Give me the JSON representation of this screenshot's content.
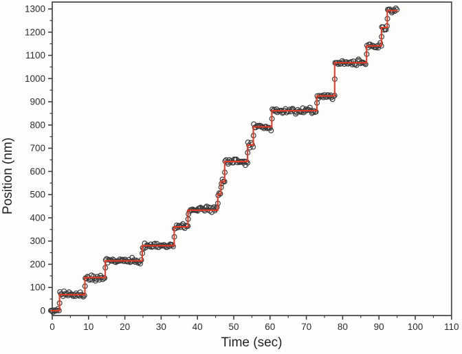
{
  "figure": {
    "description": "Scatter plot of bead position versus time showing discrete stepping, with a red step-function fit line overlaid on open-circle data points",
    "background_color": "#fdfdfc"
  },
  "colors": {
    "fit_line": "#e83b27",
    "marker_stroke": "#3a3a3a",
    "frame": "#4d4d4d",
    "tick": "#3f3f3f",
    "text": "#2b2b2b"
  },
  "chart_data": {
    "type": "scatter",
    "title": "",
    "xlabel": "Time (sec)",
    "ylabel": "Position (nm)",
    "xlim": [
      0,
      110
    ],
    "ylim": [
      0,
      1300
    ],
    "grid": false,
    "legend": "none",
    "x_major_ticks": [
      0,
      10,
      20,
      30,
      40,
      50,
      60,
      70,
      80,
      90,
      100,
      110
    ],
    "x_minor_step": 5,
    "y_major_ticks": [
      0,
      100,
      200,
      300,
      400,
      500,
      600,
      700,
      800,
      900,
      1000,
      1100,
      1200,
      1300
    ],
    "y_minor_step": 50,
    "series": [
      {
        "name": "position-samples",
        "type": "scatter",
        "marker": "open-circle",
        "marker_color": "#3a3a3a",
        "marker_radius_px": 3.4,
        "sampling_interval_sec": 0.28,
        "noise_sd_nm": 6,
        "derived_from": "step-fit"
      },
      {
        "name": "step-fit",
        "type": "step-line",
        "color": "#e83b27",
        "steps": [
          {
            "level_nm": 0,
            "t_start_sec": -0.5,
            "t_end_sec": 2.0
          },
          {
            "level_nm": 69,
            "t_start_sec": 2.0,
            "t_end_sec": 9.0
          },
          {
            "level_nm": 143,
            "t_start_sec": 9.0,
            "t_end_sec": 14.6
          },
          {
            "level_nm": 215,
            "t_start_sec": 14.6,
            "t_end_sec": 24.8
          },
          {
            "level_nm": 280,
            "t_start_sec": 24.8,
            "t_end_sec": 33.6
          },
          {
            "level_nm": 361,
            "t_start_sec": 33.6,
            "t_end_sec": 37.4
          },
          {
            "level_nm": 433,
            "t_start_sec": 37.4,
            "t_end_sec": 45.6
          },
          {
            "level_nm": 502,
            "t_start_sec": 45.6,
            "t_end_sec": 46.5
          },
          {
            "level_nm": 556,
            "t_start_sec": 46.5,
            "t_end_sec": 47.5
          },
          {
            "level_nm": 643,
            "t_start_sec": 47.5,
            "t_end_sec": 53.8
          },
          {
            "level_nm": 714,
            "t_start_sec": 53.8,
            "t_end_sec": 55.4
          },
          {
            "level_nm": 792,
            "t_start_sec": 55.4,
            "t_end_sec": 60.5
          },
          {
            "level_nm": 861,
            "t_start_sec": 60.5,
            "t_end_sec": 72.9
          },
          {
            "level_nm": 925,
            "t_start_sec": 72.9,
            "t_end_sec": 77.8
          },
          {
            "level_nm": 1068,
            "t_start_sec": 77.8,
            "t_end_sec": 86.6
          },
          {
            "level_nm": 1141,
            "t_start_sec": 86.6,
            "t_end_sec": 90.7
          },
          {
            "level_nm": 1220,
            "t_start_sec": 90.7,
            "t_end_sec": 92.3
          },
          {
            "level_nm": 1293,
            "t_start_sec": 92.3,
            "t_end_sec": 95.1
          }
        ]
      }
    ]
  }
}
